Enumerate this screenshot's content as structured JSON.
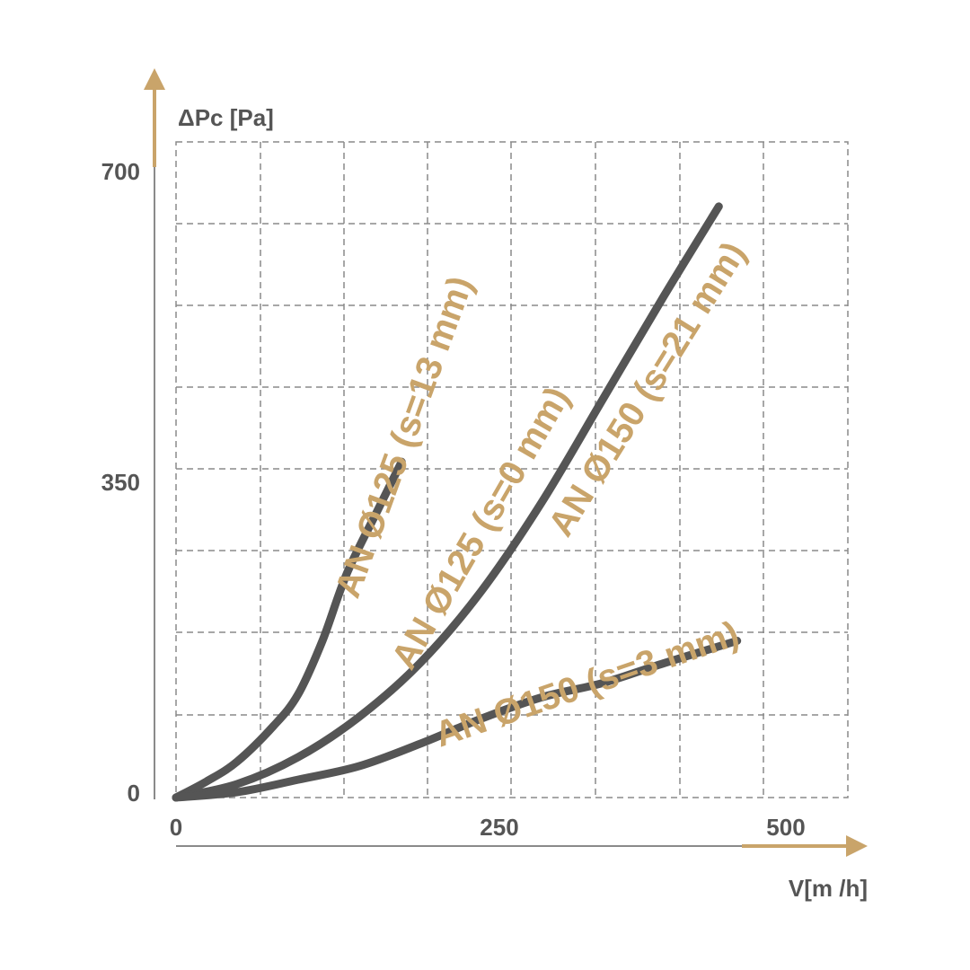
{
  "chart_data": {
    "type": "line",
    "ylabel": "ΔPc [Pa]",
    "xlabel": "V[m /h]",
    "x_ticks": [
      "0",
      "250",
      "500"
    ],
    "y_ticks": [
      "0",
      "350",
      "700"
    ],
    "xlim": [
      0,
      500
    ],
    "ylim": [
      0,
      700
    ],
    "grid": true,
    "colors": {
      "curve": "#555555",
      "label": "#c9a46a",
      "axis_arrow": "#c9a46a",
      "grid": "#8a8a8a"
    },
    "series": [
      {
        "name": "AN Ø125 (s=13 mm)",
        "points": [
          [
            0,
            0
          ],
          [
            25,
            18
          ],
          [
            50,
            40
          ],
          [
            80,
            80
          ],
          [
            100,
            115
          ],
          [
            120,
            175
          ],
          [
            140,
            250
          ],
          [
            165,
            320
          ],
          [
            185,
            375
          ]
        ]
      },
      {
        "name": "AN Ø125 (s=0 mm)",
        "points": [
          [
            0,
            0
          ],
          [
            50,
            15
          ],
          [
            100,
            45
          ],
          [
            150,
            90
          ],
          [
            200,
            150
          ],
          [
            250,
            230
          ],
          [
            300,
            330
          ],
          [
            350,
            445
          ],
          [
            400,
            560
          ],
          [
            445,
            660
          ]
        ]
      },
      {
        "name": "AN Ø150 (s=21 mm)",
        "points": [
          [
            0,
            0
          ],
          [
            50,
            15
          ],
          [
            100,
            45
          ],
          [
            150,
            90
          ],
          [
            200,
            150
          ],
          [
            250,
            230
          ],
          [
            300,
            330
          ],
          [
            350,
            445
          ],
          [
            400,
            560
          ],
          [
            445,
            660
          ]
        ]
      },
      {
        "name": "AN Ø150 (s=3 mm)",
        "points": [
          [
            0,
            0
          ],
          [
            50,
            6
          ],
          [
            100,
            20
          ],
          [
            150,
            35
          ],
          [
            200,
            60
          ],
          [
            250,
            88
          ],
          [
            300,
            112
          ],
          [
            350,
            128
          ],
          [
            400,
            150
          ],
          [
            460,
            175
          ]
        ]
      }
    ]
  }
}
